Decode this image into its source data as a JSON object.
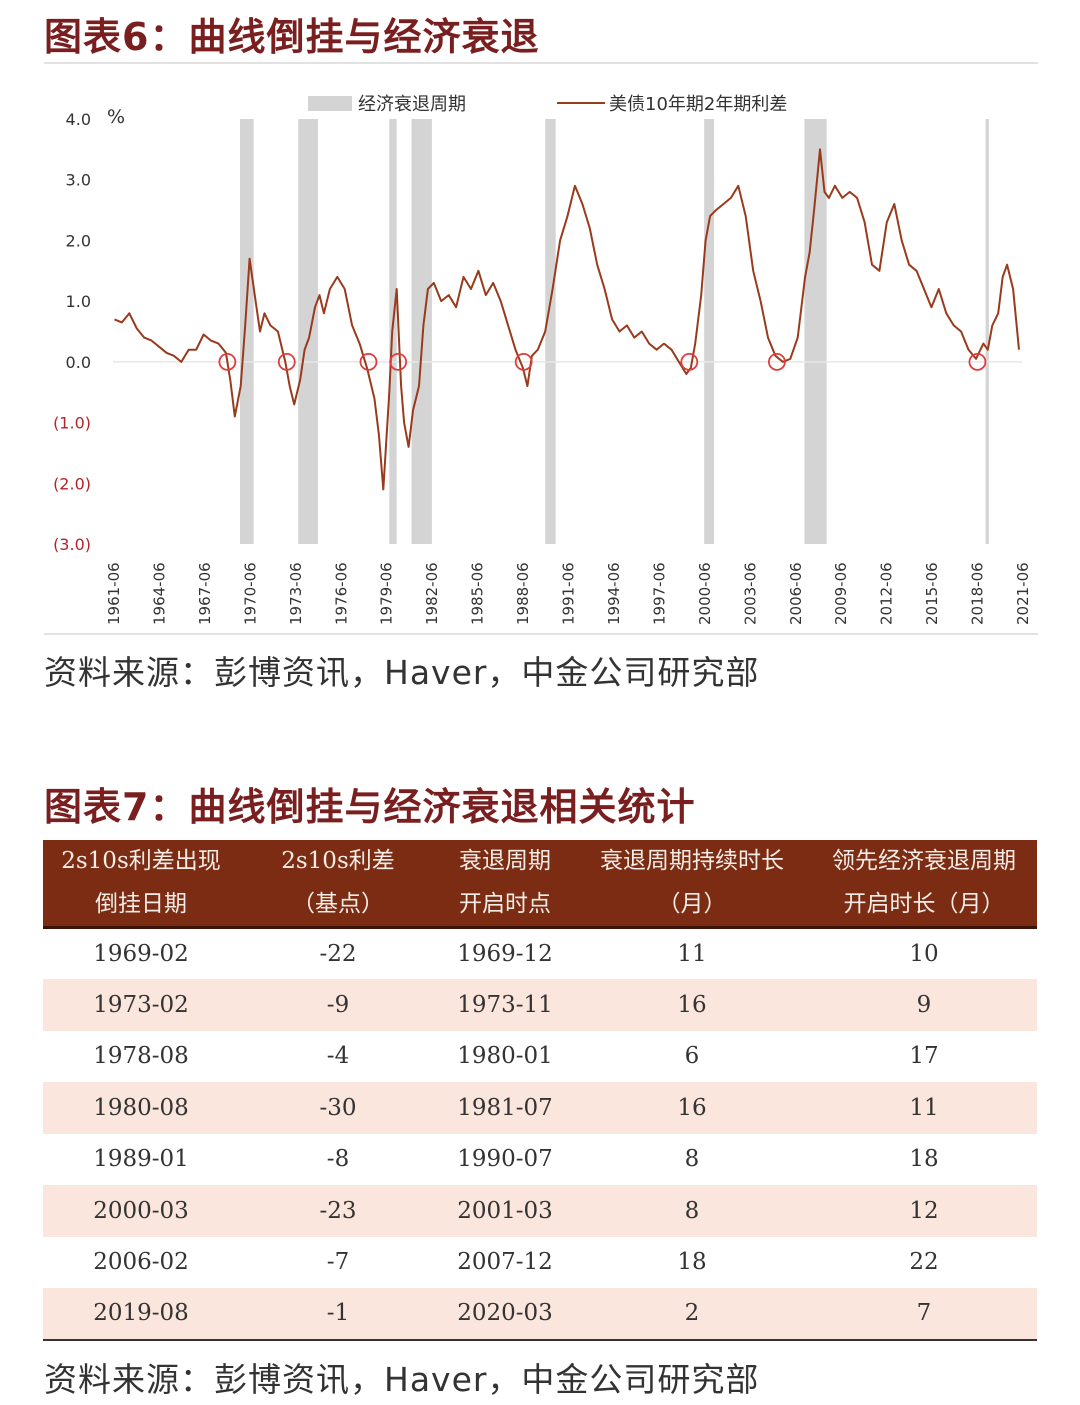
{
  "figure6": {
    "title": "图表6：曲线倒挂与经济衰退",
    "source": "资料来源：彭博资讯，Haver，中金公司研究部"
  },
  "figure7": {
    "title": "图表7：曲线倒挂与经济衰退相关统计",
    "source": "资料来源：彭博资讯，Haver，中金公司研究部"
  },
  "colors": {
    "title": "#7a1f1f",
    "line": "#9a3a1c",
    "recession": "#d4d4d4",
    "marker": "#e03c3c",
    "negative_label": "#b5232a",
    "table_header": "#7b2c12",
    "row_stripe": "#fbe6dd"
  },
  "chart_data": {
    "type": "line",
    "title": "",
    "ylabel": "%",
    "ylim": [
      -3.0,
      4.0
    ],
    "yticks": [
      4.0,
      3.0,
      2.0,
      1.0,
      0.0,
      -1.0,
      -2.0,
      -3.0
    ],
    "ytick_labels": [
      "4.0",
      "3.0",
      "2.0",
      "1.0",
      "0.0",
      "(1.0)",
      "(2.0)",
      "(3.0)"
    ],
    "xlim": [
      1961.4,
      2022.6
    ],
    "xtick_labels": [
      "1961-06",
      "1964-06",
      "1967-06",
      "1970-06",
      "1973-06",
      "1976-06",
      "1979-06",
      "1982-06",
      "1985-06",
      "1988-06",
      "1991-06",
      "1994-06",
      "1997-06",
      "2000-06",
      "2003-06",
      "2006-06",
      "2009-06",
      "2012-06",
      "2015-06",
      "2018-06",
      "2021-06"
    ],
    "legend": {
      "position": "top",
      "items": [
        {
          "label": "经济衰退周期",
          "kind": "shade"
        },
        {
          "label": "美债10年期2年期利差",
          "kind": "line"
        }
      ]
    },
    "recessions": [
      {
        "start": 1969.95,
        "end": 1970.87
      },
      {
        "start": 1973.87,
        "end": 1975.2
      },
      {
        "start": 1980.0,
        "end": 1980.5
      },
      {
        "start": 1981.5,
        "end": 1982.87
      },
      {
        "start": 1990.5,
        "end": 1991.2
      },
      {
        "start": 2001.2,
        "end": 2001.87
      },
      {
        "start": 2007.95,
        "end": 2009.45
      },
      {
        "start": 2020.15,
        "end": 2020.37
      }
    ],
    "inversion_markers": [
      1969.1,
      1973.1,
      1978.6,
      1980.6,
      1989.05,
      2000.2,
      2006.1,
      2019.6
    ],
    "series": [
      {
        "name": "美债10年期2年期利差",
        "x": [
          1961.5,
          1962.0,
          1962.5,
          1963.0,
          1963.5,
          1964.0,
          1964.5,
          1965.0,
          1965.5,
          1966.0,
          1966.5,
          1967.0,
          1967.5,
          1968.0,
          1968.5,
          1969.0,
          1969.3,
          1969.6,
          1970.0,
          1970.3,
          1970.6,
          1971.0,
          1971.3,
          1971.6,
          1972.0,
          1972.5,
          1973.0,
          1973.3,
          1973.6,
          1974.0,
          1974.3,
          1974.6,
          1975.0,
          1975.3,
          1975.6,
          1976.0,
          1976.5,
          1977.0,
          1977.5,
          1978.0,
          1978.5,
          1979.0,
          1979.3,
          1979.6,
          1980.0,
          1980.2,
          1980.5,
          1980.8,
          1981.0,
          1981.3,
          1981.6,
          1982.0,
          1982.3,
          1982.6,
          1983.0,
          1983.5,
          1984.0,
          1984.5,
          1985.0,
          1985.5,
          1986.0,
          1986.5,
          1987.0,
          1987.5,
          1988.0,
          1988.5,
          1989.0,
          1989.3,
          1989.6,
          1990.0,
          1990.5,
          1991.0,
          1991.5,
          1992.0,
          1992.5,
          1993.0,
          1993.5,
          1994.0,
          1994.5,
          1995.0,
          1995.5,
          1996.0,
          1996.5,
          1997.0,
          1997.5,
          1998.0,
          1998.5,
          1999.0,
          1999.5,
          2000.0,
          2000.3,
          2000.6,
          2001.0,
          2001.3,
          2001.6,
          2002.0,
          2002.5,
          2003.0,
          2003.5,
          2004.0,
          2004.5,
          2005.0,
          2005.5,
          2006.0,
          2006.5,
          2007.0,
          2007.5,
          2008.0,
          2008.3,
          2008.6,
          2009.0,
          2009.3,
          2009.6,
          2010.0,
          2010.5,
          2011.0,
          2011.5,
          2012.0,
          2012.5,
          2013.0,
          2013.5,
          2014.0,
          2014.5,
          2015.0,
          2015.5,
          2016.0,
          2016.5,
          2017.0,
          2017.5,
          2018.0,
          2018.5,
          2019.0,
          2019.5,
          2020.0,
          2020.3,
          2020.6,
          2021.0,
          2021.3,
          2021.6,
          2022.0,
          2022.4
        ],
        "values": [
          0.7,
          0.65,
          0.8,
          0.55,
          0.4,
          0.35,
          0.25,
          0.15,
          0.1,
          0.0,
          0.2,
          0.2,
          0.45,
          0.35,
          0.3,
          0.15,
          -0.3,
          -0.9,
          -0.4,
          0.6,
          1.7,
          1.0,
          0.5,
          0.8,
          0.6,
          0.5,
          0.0,
          -0.4,
          -0.7,
          -0.3,
          0.2,
          0.4,
          0.9,
          1.1,
          0.8,
          1.2,
          1.4,
          1.2,
          0.6,
          0.3,
          -0.1,
          -0.6,
          -1.2,
          -2.1,
          -0.5,
          0.5,
          1.2,
          -0.4,
          -1.0,
          -1.4,
          -0.8,
          -0.4,
          0.6,
          1.2,
          1.3,
          1.0,
          1.1,
          0.9,
          1.4,
          1.2,
          1.5,
          1.1,
          1.3,
          1.0,
          0.6,
          0.2,
          -0.1,
          -0.4,
          0.1,
          0.2,
          0.5,
          1.2,
          2.0,
          2.4,
          2.9,
          2.6,
          2.2,
          1.6,
          1.2,
          0.7,
          0.5,
          0.6,
          0.4,
          0.5,
          0.3,
          0.2,
          0.3,
          0.2,
          0.0,
          -0.2,
          -0.1,
          0.3,
          1.1,
          2.0,
          2.4,
          2.5,
          2.6,
          2.7,
          2.9,
          2.4,
          1.5,
          1.0,
          0.4,
          0.1,
          0.0,
          0.05,
          0.4,
          1.4,
          1.8,
          2.5,
          3.5,
          2.8,
          2.7,
          2.9,
          2.7,
          2.8,
          2.7,
          2.3,
          1.6,
          1.5,
          2.3,
          2.6,
          2.0,
          1.6,
          1.5,
          1.2,
          0.9,
          1.2,
          0.8,
          0.6,
          0.5,
          0.2,
          0.05,
          0.3,
          0.2,
          0.6,
          0.8,
          1.4,
          1.6,
          1.2,
          0.2
        ]
      }
    ]
  },
  "table": {
    "headers": [
      {
        "line1": "2s10s利差出现",
        "line2": "倒挂日期"
      },
      {
        "line1": "2s10s利差",
        "line2": "（基点）"
      },
      {
        "line1": "衰退周期",
        "line2": "开启时点"
      },
      {
        "line1": "衰退周期持续时长",
        "line2": "（月）"
      },
      {
        "line1": "领先经济衰退周期",
        "line2": "开启时长（月）"
      }
    ],
    "rows": [
      [
        "1969-02",
        "-22",
        "1969-12",
        "11",
        "10"
      ],
      [
        "1973-02",
        "-9",
        "1973-11",
        "16",
        "9"
      ],
      [
        "1978-08",
        "-4",
        "1980-01",
        "6",
        "17"
      ],
      [
        "1980-08",
        "-30",
        "1981-07",
        "16",
        "11"
      ],
      [
        "1989-01",
        "-8",
        "1990-07",
        "8",
        "18"
      ],
      [
        "2000-03",
        "-23",
        "2001-03",
        "8",
        "12"
      ],
      [
        "2006-02",
        "-7",
        "2007-12",
        "18",
        "22"
      ],
      [
        "2019-08",
        "-1",
        "2020-03",
        "2",
        "7"
      ]
    ]
  }
}
